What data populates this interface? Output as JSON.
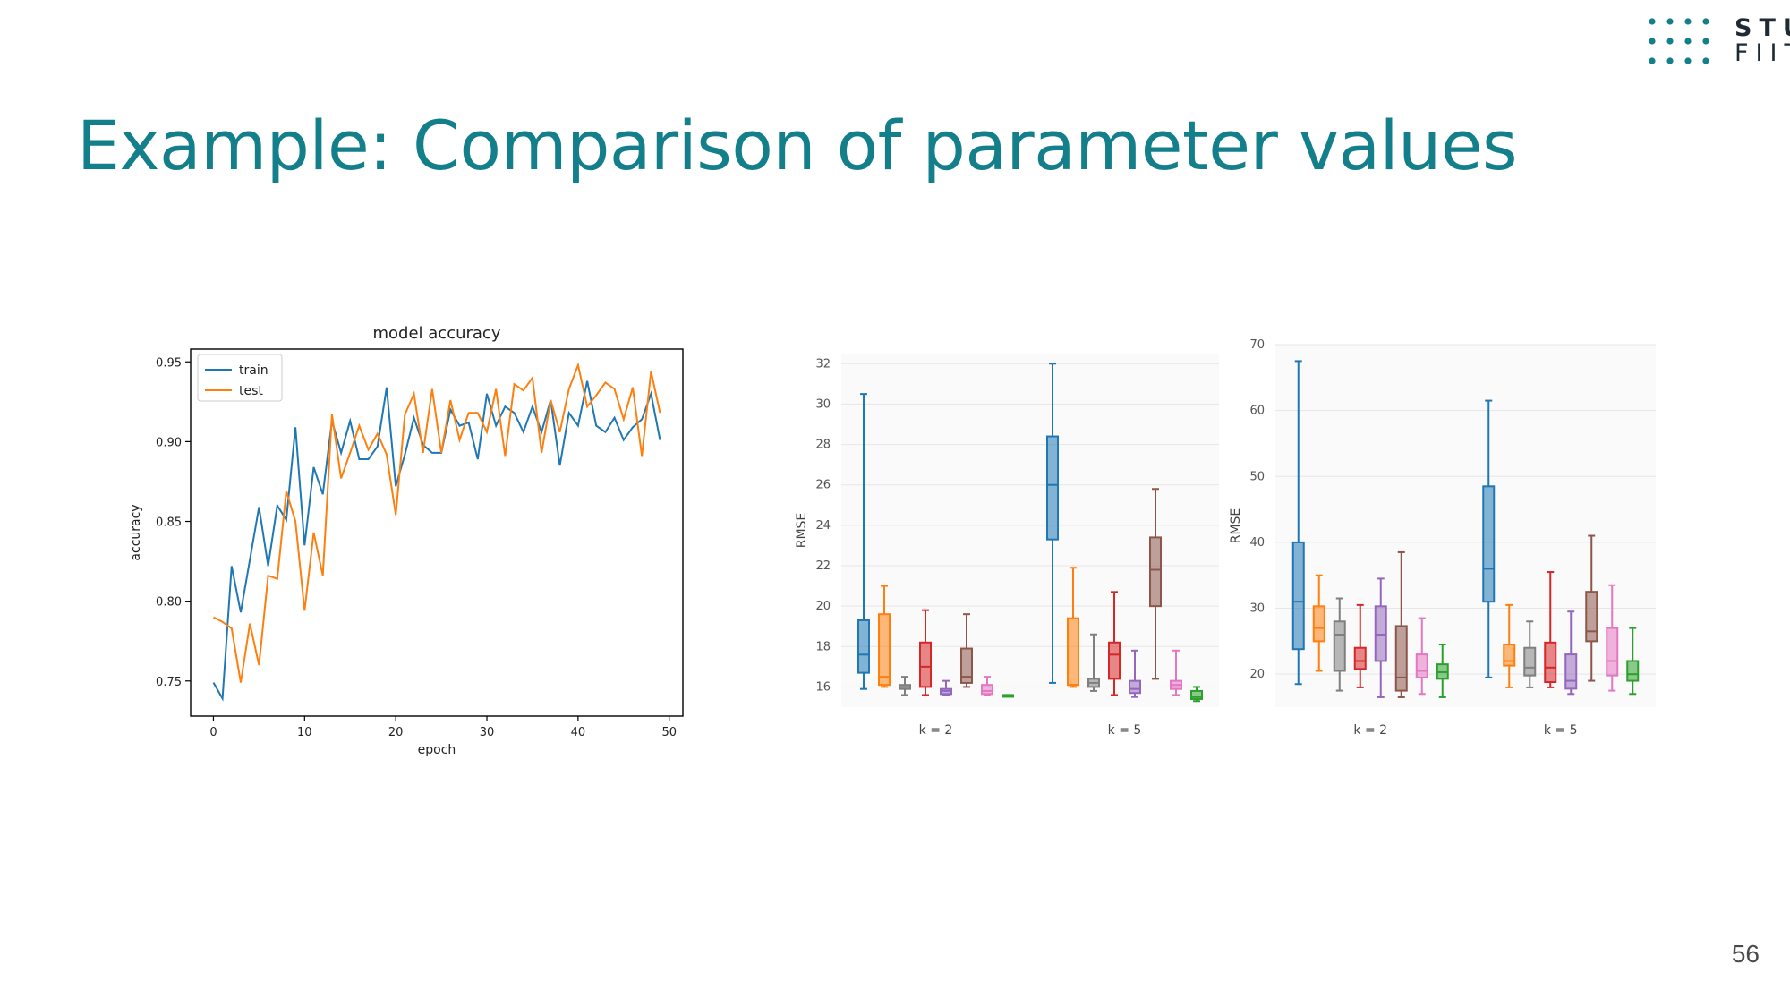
{
  "slide": {
    "title": "Example: Comparison of parameter values",
    "page_number": "56",
    "logo": {
      "line1": "STU",
      "line2": "FIIT",
      "dot_color": "#127f8a"
    },
    "title_color": "#127f8a"
  },
  "chart_data": [
    {
      "type": "line",
      "title": "model accuracy",
      "xlabel": "epoch",
      "ylabel": "accuracy",
      "xlim": [
        -2.5,
        51.5
      ],
      "ylim": [
        0.728,
        0.958
      ],
      "xticks": [
        0,
        10,
        20,
        30,
        40,
        50
      ],
      "yticks": [
        0.75,
        0.8,
        0.85,
        0.9,
        0.95
      ],
      "ytick_labels": [
        "0.75",
        "0.80",
        "0.85",
        "0.90",
        "0.95"
      ],
      "legend_position": "top-left",
      "grid": false,
      "x": [
        0,
        1,
        2,
        3,
        4,
        5,
        6,
        7,
        8,
        9,
        10,
        11,
        12,
        13,
        14,
        15,
        16,
        17,
        18,
        19,
        20,
        21,
        22,
        23,
        24,
        25,
        26,
        27,
        28,
        29,
        30,
        31,
        32,
        33,
        34,
        35,
        36,
        37,
        38,
        39,
        40,
        41,
        42,
        43,
        44,
        45,
        46,
        47,
        48,
        49
      ],
      "series": [
        {
          "name": "train",
          "color": "#1f77b4",
          "values": [
            0.749,
            0.739,
            0.822,
            0.793,
            0.826,
            0.859,
            0.822,
            0.86,
            0.851,
            0.909,
            0.835,
            0.884,
            0.867,
            0.913,
            0.893,
            0.913,
            0.889,
            0.889,
            0.897,
            0.934,
            0.872,
            0.892,
            0.915,
            0.898,
            0.893,
            0.893,
            0.92,
            0.91,
            0.912,
            0.889,
            0.93,
            0.91,
            0.922,
            0.918,
            0.906,
            0.922,
            0.906,
            0.926,
            0.885,
            0.918,
            0.91,
            0.938,
            0.91,
            0.906,
            0.915,
            0.901,
            0.909,
            0.914,
            0.93,
            0.901
          ]
        },
        {
          "name": "test",
          "color": "#ff7f0e",
          "values": [
            0.79,
            0.787,
            0.783,
            0.749,
            0.786,
            0.76,
            0.816,
            0.814,
            0.869,
            0.85,
            0.794,
            0.843,
            0.816,
            0.917,
            0.877,
            0.893,
            0.91,
            0.895,
            0.905,
            0.892,
            0.854,
            0.917,
            0.93,
            0.893,
            0.933,
            0.893,
            0.926,
            0.901,
            0.918,
            0.918,
            0.906,
            0.933,
            0.891,
            0.936,
            0.932,
            0.94,
            0.893,
            0.926,
            0.906,
            0.933,
            0.948,
            0.922,
            0.929,
            0.937,
            0.933,
            0.914,
            0.934,
            0.891,
            0.944,
            0.918
          ]
        }
      ]
    },
    {
      "type": "box",
      "ylabel": "RMSE",
      "ylim": [
        15,
        32.5
      ],
      "yticks": [
        16,
        18,
        20,
        22,
        24,
        26,
        28,
        30,
        32
      ],
      "groups": [
        "k = 2",
        "k = 5"
      ],
      "grid": true,
      "series_colors": [
        "#1f77b4",
        "#ff7f0e",
        "#7f7f7f",
        "#d62728",
        "#9467bd",
        "#8c564b",
        "#e377c2",
        "#2ca02c"
      ],
      "boxes": [
        [
          {
            "min": 15.9,
            "q1": 16.7,
            "median": 17.6,
            "q3": 19.3,
            "max": 30.5
          },
          {
            "min": 16.0,
            "q1": 16.1,
            "median": 16.5,
            "q3": 19.6,
            "max": 21.0
          },
          {
            "min": 15.6,
            "q1": 15.9,
            "median": 16.0,
            "q3": 16.1,
            "max": 16.5
          },
          {
            "min": 15.6,
            "q1": 16.0,
            "median": 17.0,
            "q3": 18.2,
            "max": 19.8
          },
          {
            "min": 15.6,
            "q1": 15.65,
            "median": 15.8,
            "q3": 15.9,
            "max": 16.3
          },
          {
            "min": 16.0,
            "q1": 16.2,
            "median": 16.5,
            "q3": 17.9,
            "max": 19.6
          },
          {
            "min": 15.6,
            "q1": 15.65,
            "median": 15.8,
            "q3": 16.1,
            "max": 16.5
          },
          {
            "min": 15.55,
            "q1": 15.55,
            "median": 15.6,
            "q3": 15.6,
            "max": 15.6
          }
        ],
        [
          {
            "min": 16.2,
            "q1": 23.3,
            "median": 26.0,
            "q3": 28.4,
            "max": 32.0
          },
          {
            "min": 16.0,
            "q1": 16.1,
            "median": 16.1,
            "q3": 19.4,
            "max": 21.9
          },
          {
            "min": 15.8,
            "q1": 16.0,
            "median": 16.2,
            "q3": 16.4,
            "max": 18.6
          },
          {
            "min": 15.6,
            "q1": 16.4,
            "median": 17.6,
            "q3": 18.2,
            "max": 20.7
          },
          {
            "min": 15.5,
            "q1": 15.7,
            "median": 15.9,
            "q3": 16.3,
            "max": 17.8
          },
          {
            "min": 16.4,
            "q1": 20.0,
            "median": 21.8,
            "q3": 23.4,
            "max": 25.8
          },
          {
            "min": 15.6,
            "q1": 15.9,
            "median": 16.1,
            "q3": 16.3,
            "max": 17.8
          },
          {
            "min": 15.3,
            "q1": 15.4,
            "median": 15.5,
            "q3": 15.8,
            "max": 16.0
          }
        ]
      ]
    },
    {
      "type": "box",
      "ylabel": "RMSE",
      "ylim": [
        15,
        70
      ],
      "yticks": [
        20,
        30,
        40,
        50,
        60,
        70
      ],
      "groups": [
        "k = 2",
        "k = 5"
      ],
      "grid": true,
      "series_colors": [
        "#1f77b4",
        "#ff7f0e",
        "#7f7f7f",
        "#d62728",
        "#9467bd",
        "#8c564b",
        "#e377c2",
        "#2ca02c"
      ],
      "boxes": [
        [
          {
            "min": 18.5,
            "q1": 23.8,
            "median": 31.0,
            "q3": 40.0,
            "max": 67.5
          },
          {
            "min": 20.5,
            "q1": 25.0,
            "median": 27.0,
            "q3": 30.3,
            "max": 35.0
          },
          {
            "min": 17.5,
            "q1": 20.5,
            "median": 26.0,
            "q3": 28.0,
            "max": 31.5
          },
          {
            "min": 18.0,
            "q1": 20.8,
            "median": 22.0,
            "q3": 24.0,
            "max": 30.5
          },
          {
            "min": 16.5,
            "q1": 22.0,
            "median": 26.0,
            "q3": 30.3,
            "max": 34.5
          },
          {
            "min": 16.5,
            "q1": 17.5,
            "median": 19.5,
            "q3": 27.3,
            "max": 38.5
          },
          {
            "min": 17.0,
            "q1": 19.5,
            "median": 20.5,
            "q3": 23.0,
            "max": 28.5
          },
          {
            "min": 16.5,
            "q1": 19.3,
            "median": 20.3,
            "q3": 21.5,
            "max": 24.5
          }
        ],
        [
          {
            "min": 19.5,
            "q1": 31.0,
            "median": 36.0,
            "q3": 48.5,
            "max": 61.5
          },
          {
            "min": 18.0,
            "q1": 21.3,
            "median": 22.0,
            "q3": 24.5,
            "max": 30.5
          },
          {
            "min": 18.0,
            "q1": 19.8,
            "median": 21.0,
            "q3": 24.0,
            "max": 28.0
          },
          {
            "min": 18.0,
            "q1": 18.8,
            "median": 21.0,
            "q3": 24.8,
            "max": 35.5
          },
          {
            "min": 17.0,
            "q1": 17.8,
            "median": 19.0,
            "q3": 23.0,
            "max": 29.5
          },
          {
            "min": 19.0,
            "q1": 25.0,
            "median": 26.5,
            "q3": 32.5,
            "max": 41.0
          },
          {
            "min": 17.5,
            "q1": 19.8,
            "median": 22.0,
            "q3": 27.0,
            "max": 33.5
          },
          {
            "min": 17.0,
            "q1": 19.0,
            "median": 20.0,
            "q3": 22.0,
            "max": 27.0
          }
        ]
      ]
    }
  ]
}
